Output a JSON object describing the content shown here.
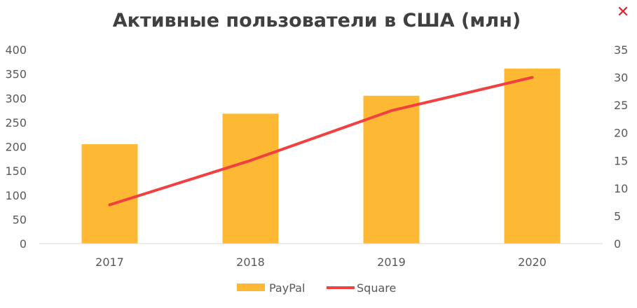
{
  "chart_data": {
    "type": "bar",
    "title": "Активные пользователи в США (млн)",
    "categories": [
      "2017",
      "2018",
      "2019",
      "2020"
    ],
    "series": [
      {
        "name": "PayPal",
        "type": "bar",
        "axis": "left",
        "color": "#FDB933",
        "values": [
          205,
          268,
          305,
          361
        ]
      },
      {
        "name": "Square",
        "type": "line",
        "axis": "right",
        "color": "#F04040",
        "values": [
          7,
          15,
          24,
          30
        ]
      }
    ],
    "y_left": {
      "min": 0,
      "max": 400,
      "step": 50,
      "ticks": [
        "0",
        "50",
        "100",
        "150",
        "200",
        "250",
        "300",
        "350",
        "400"
      ]
    },
    "y_right": {
      "min": 0,
      "max": 35,
      "step": 5,
      "ticks": [
        "0",
        "5",
        "10",
        "15",
        "20",
        "25",
        "30",
        "35"
      ]
    },
    "grid": false,
    "legend": "bottom"
  },
  "close_icon": {
    "glyph": "✕",
    "color": "#e8202a"
  }
}
